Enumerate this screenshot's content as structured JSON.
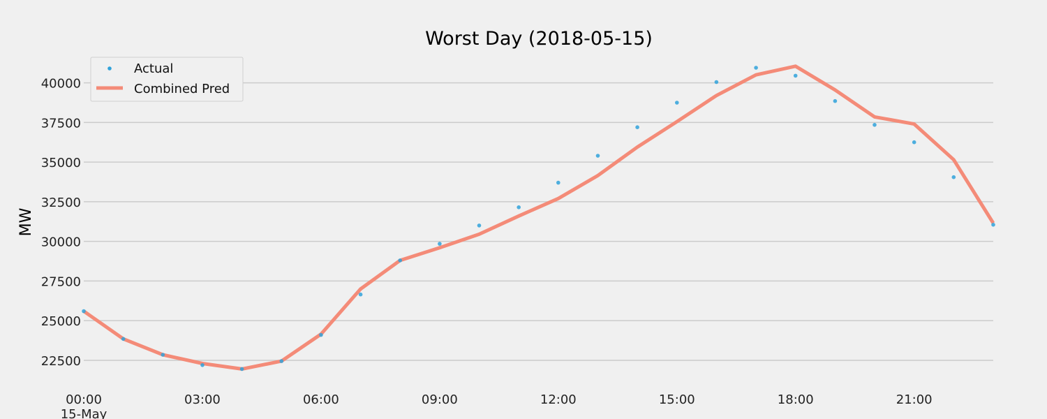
{
  "chart_data": {
    "type": "line",
    "title": "Worst Day (2018-05-15)",
    "xlabel": "",
    "ylabel": "MW",
    "x_ticks": [
      "00:00",
      "03:00",
      "06:00",
      "09:00",
      "12:00",
      "15:00",
      "18:00",
      "21:00"
    ],
    "x_sublabel": "15-May",
    "x": [
      "00:00",
      "01:00",
      "02:00",
      "03:00",
      "04:00",
      "05:00",
      "06:00",
      "07:00",
      "08:00",
      "09:00",
      "10:00",
      "11:00",
      "12:00",
      "13:00",
      "14:00",
      "15:00",
      "16:00",
      "17:00",
      "18:00",
      "19:00",
      "20:00",
      "21:00",
      "22:00",
      "23:00"
    ],
    "xlim": [
      "00:00",
      "23:00"
    ],
    "ylim": [
      21000,
      41700
    ],
    "y_ticks": [
      22500,
      25000,
      27500,
      30000,
      32500,
      35000,
      37500,
      40000
    ],
    "grid": true,
    "legend_position": "top-left",
    "series": [
      {
        "name": "Actual",
        "style": "scatter",
        "color": "#30a2da",
        "values": [
          25600,
          23850,
          22850,
          22200,
          21950,
          22450,
          24100,
          26650,
          28800,
          29850,
          31000,
          32150,
          33700,
          35400,
          37200,
          38750,
          40050,
          40950,
          40450,
          38850,
          37350,
          36250,
          34050,
          31050
        ]
      },
      {
        "name": "Combined Pred",
        "style": "line",
        "color": "#f48b78",
        "values": [
          25600,
          23850,
          22850,
          22300,
          21950,
          22450,
          24150,
          27000,
          28800,
          29600,
          30450,
          31600,
          32700,
          34150,
          35950,
          37550,
          39200,
          40500,
          41050,
          39550,
          37850,
          37400,
          35150,
          31150
        ]
      }
    ]
  }
}
